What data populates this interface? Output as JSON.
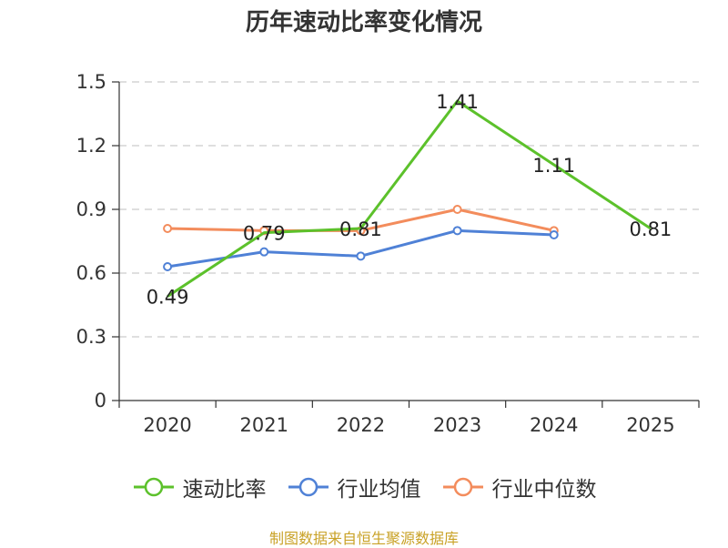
{
  "chart_data": {
    "type": "line",
    "title": "历年速动比率变化情况",
    "categories": [
      "2020",
      "2021",
      "2022",
      "2023",
      "2024",
      "2025"
    ],
    "ylim": [
      0,
      1.5
    ],
    "yticks": [
      "0",
      "0.3",
      "0.6",
      "0.9",
      "1.2",
      "1.5"
    ],
    "grid": true,
    "legend_position": "bottom",
    "series": [
      {
        "name": "速动比率",
        "color": "#5cc12b",
        "values": [
          0.49,
          0.79,
          0.81,
          1.41,
          1.11,
          0.81
        ],
        "labels": [
          "0.49",
          "0.79",
          "0.81",
          "1.41",
          "1.11",
          "0.81"
        ],
        "markers": false
      },
      {
        "name": "行业均值",
        "color": "#4f81d6",
        "values": [
          0.63,
          0.7,
          0.68,
          0.8,
          0.78,
          null
        ],
        "markers": true
      },
      {
        "name": "行业中位数",
        "color": "#f38c5c",
        "values": [
          0.81,
          0.8,
          0.8,
          0.9,
          0.8,
          null
        ],
        "markers": true
      }
    ]
  },
  "footer": {
    "source": "制图数据来自恒生聚源数据库"
  }
}
